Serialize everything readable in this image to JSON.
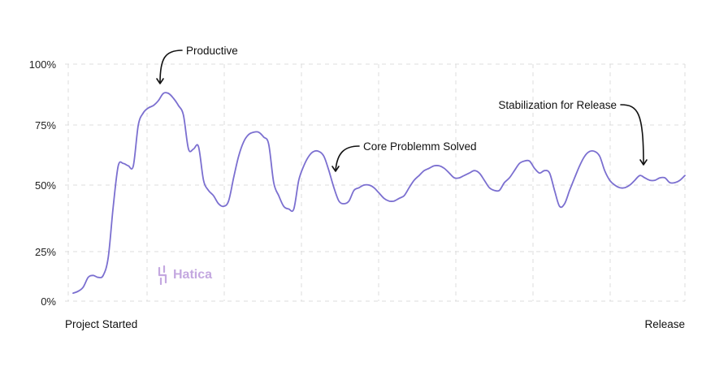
{
  "chart_data": {
    "type": "line",
    "title": "",
    "xlabel": "",
    "ylabel": "",
    "x_labels": [
      "Project Started",
      "Release"
    ],
    "y_ticks": [
      "0%",
      "25%",
      "50%",
      "75%",
      "100%"
    ],
    "ylim": [
      0,
      100
    ],
    "grid": true,
    "series": [
      {
        "color": "#7b6fd0",
        "values": [
          4,
          5,
          7,
          12,
          13,
          12,
          13,
          22,
          42,
          58,
          59,
          58,
          58,
          75,
          80,
          82,
          83,
          85,
          88,
          88,
          86,
          83,
          79,
          65,
          65,
          66,
          52,
          48,
          46,
          43,
          42,
          44,
          53,
          62,
          68,
          71,
          72,
          72,
          70,
          67,
          51,
          46,
          42,
          41,
          41,
          52,
          58,
          62,
          64,
          64,
          62,
          56,
          49,
          44,
          43,
          44,
          48,
          49,
          50,
          50,
          49,
          47,
          45,
          44,
          44,
          45,
          46,
          49,
          52,
          54,
          56,
          57,
          58,
          58,
          57,
          55,
          53,
          53,
          54,
          55,
          56,
          55,
          52,
          49,
          48,
          48,
          51,
          53,
          56,
          59,
          60,
          60,
          57,
          55,
          56,
          55,
          48,
          42,
          43,
          48,
          53,
          58,
          62,
          64,
          64,
          62,
          56,
          52,
          50,
          49,
          49,
          50,
          52,
          54,
          53,
          52,
          52,
          53,
          53,
          51,
          51,
          52,
          54
        ]
      }
    ],
    "annotations": [
      {
        "text": "Productive"
      },
      {
        "text": "Core Problemm Solved"
      },
      {
        "text": "Stabilization for Release"
      }
    ]
  },
  "watermark": {
    "text": "Hatica",
    "color": "#c4a8e0"
  }
}
